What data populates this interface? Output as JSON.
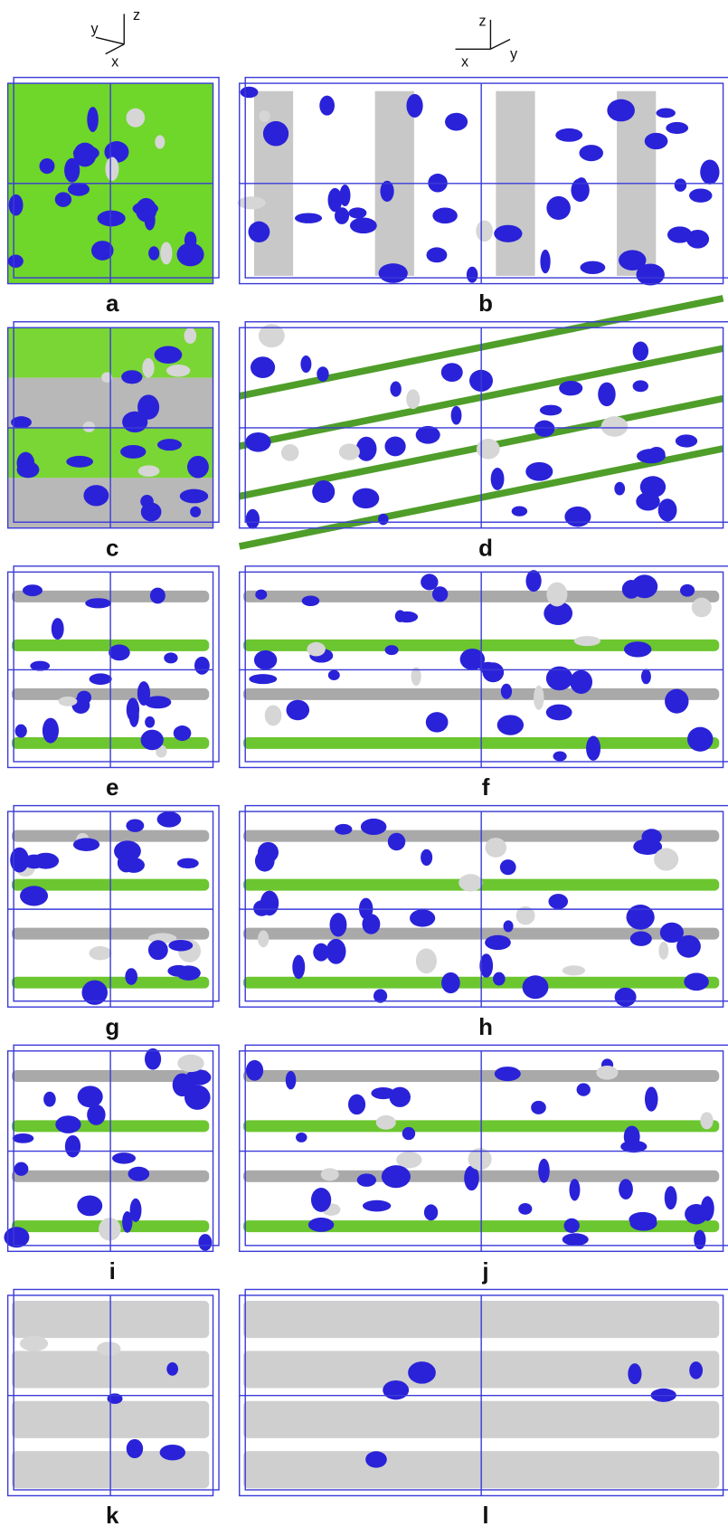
{
  "axes_left": {
    "z": "z",
    "y": "y",
    "x": "x"
  },
  "axes_right": {
    "z": "z",
    "y": "y",
    "x": "x"
  },
  "panels": [
    {
      "label": "a"
    },
    {
      "label": "b"
    },
    {
      "label": "c"
    },
    {
      "label": "d"
    },
    {
      "label": "e"
    },
    {
      "label": "f"
    },
    {
      "label": "g"
    },
    {
      "label": "h"
    },
    {
      "label": "i"
    },
    {
      "label": "j"
    },
    {
      "label": "k"
    },
    {
      "label": "l"
    }
  ]
}
